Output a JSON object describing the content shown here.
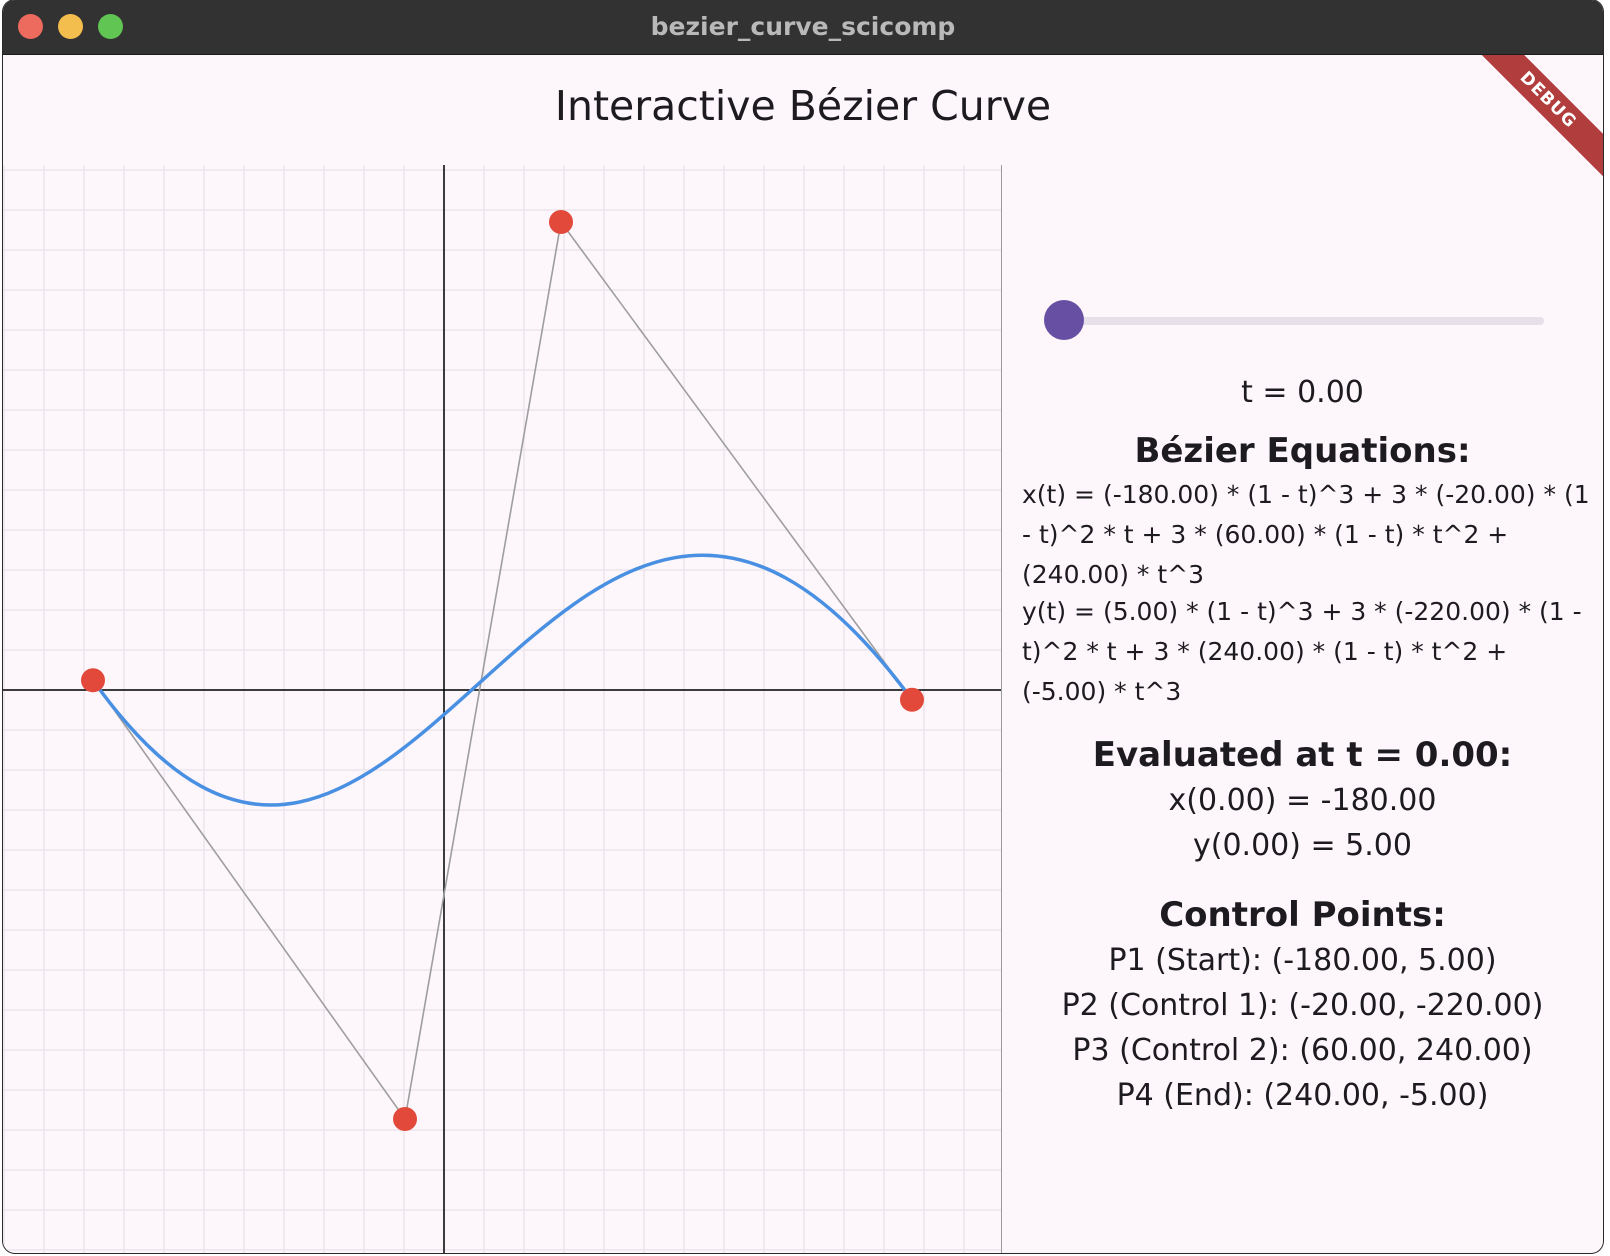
{
  "window": {
    "title": "bezier_curve_scicomp",
    "debug_banner": "DEBUG"
  },
  "app": {
    "title": "Interactive Bézier Curve"
  },
  "colors": {
    "curve": "#4a90e2",
    "control_point": "#e2493b",
    "polygon": "#9e9e9e",
    "grid": "#ebe6ec",
    "axis": "#000000",
    "slider_thumb": "#6750a4"
  },
  "control_points": [
    {
      "x": -180,
      "y": 5
    },
    {
      "x": -20,
      "y": -220
    },
    {
      "x": 60,
      "y": 240
    },
    {
      "x": 240,
      "y": -5
    }
  ],
  "slider": {
    "t": 0.0,
    "min": 0.0,
    "max": 1.0
  },
  "panel": {
    "t_label": "t = 0.00",
    "equations_heading": "Bézier Equations:",
    "x_equation": "x(t) = (-180.00) * (1 - t)^3 + 3 * (-20.00) * (1 - t)^2 * t + 3 * (60.00) * (1 - t) * t^2 + (240.00) * t^3",
    "y_equation": "y(t) = (5.00) * (1 - t)^3 + 3 * (-220.00) * (1 - t)^2 * t + 3 * (240.00) * (1 - t) * t^2 + (-5.00) * t^3",
    "evaluated_heading": "Evaluated at t = 0.00:",
    "x_value": "x(0.00) = -180.00",
    "y_value": "y(0.00) = 5.00",
    "control_points_heading": "Control Points:",
    "p1": "P1 (Start): (-180.00, 5.00)",
    "p2": "P2 (Control 1): (-20.00, -220.00)",
    "p3": "P3 (Control 2): (60.00, 240.00)",
    "p4": "P4 (End): (240.00, -5.00)"
  }
}
